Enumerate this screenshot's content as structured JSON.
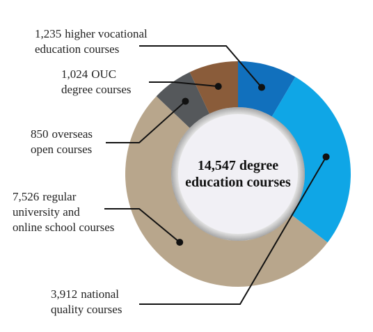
{
  "chart_data": {
    "type": "doughnut",
    "center_label": "14,547 degree\neducation courses",
    "categories": [
      "higher vocational\neducation courses",
      "national\nquality courses",
      "regular\nuniversity and\nonline school courses",
      "overseas\nopen courses",
      "OUC\ndegree courses"
    ],
    "values": [
      1235,
      3912,
      7526,
      850,
      1024
    ],
    "value_labels": [
      "1,235",
      "3,912",
      "7,526",
      "850",
      "1,024"
    ],
    "colors": [
      "#1170bd",
      "#0fa6e6",
      "#b8a68c",
      "#55585b",
      "#8a5c3a"
    ]
  }
}
